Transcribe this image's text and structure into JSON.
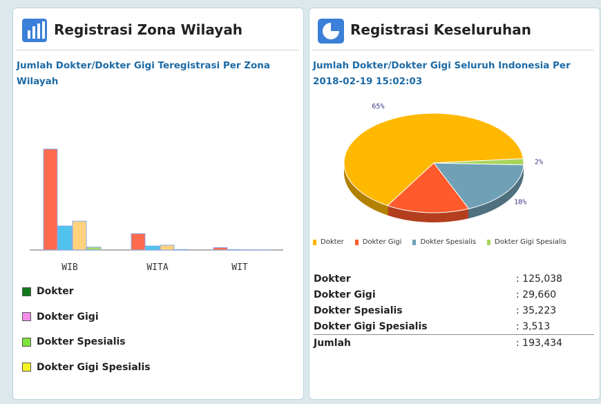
{
  "panels": [
    {
      "title": "Registrasi Zona Wilayah"
    },
    {
      "title": "Registrasi Keseluruhan"
    }
  ],
  "chart_data": [
    {
      "type": "bar",
      "title": "Jumlah Dokter/Dokter Gigi Teregistrasi Per Zona Wilayah",
      "categories": [
        "WIB",
        "WITA",
        "WIT"
      ],
      "series": [
        {
          "name": "Dokter",
          "color": "#ff6b4d",
          "legend_color": "#117a1d",
          "values": [
            105000,
            17000,
            2500
          ]
        },
        {
          "name": "Dokter Gigi",
          "color": "#4fc3ee",
          "legend_color": "#f58de8",
          "values": [
            25000,
            4200,
            400
          ]
        },
        {
          "name": "Dokter Spesialis",
          "color": "#ffd37e",
          "legend_color": "#7ee33a",
          "values": [
            30000,
            5000,
            200
          ]
        },
        {
          "name": "Dokter Gigi Spesialis",
          "color": "#a8dc6b",
          "legend_color": "#f4f423",
          "values": [
            3000,
            500,
            13
          ]
        }
      ],
      "ylim": [
        0,
        115000
      ]
    },
    {
      "type": "pie",
      "title": "Jumlah Dokter/Dokter Gigi Seluruh Indonesia Per 2018-02-19 15:02:03",
      "categories": [
        "Dokter",
        "Dokter Gigi",
        "Dokter Spesialis",
        "Dokter Gigi Spesialis"
      ],
      "values": [
        65,
        15,
        18,
        2
      ],
      "value_labels": [
        "65%",
        null,
        "18%",
        "2%"
      ],
      "colors": [
        "#ffb800",
        "#ff5a2b",
        "#6fa0b6",
        "#a9d45c"
      ]
    }
  ],
  "table": {
    "rows": [
      [
        "Dokter",
        ": 125,038"
      ],
      [
        "Dokter Gigi",
        ": 29,660"
      ],
      [
        "Dokter Spesialis",
        ": 35,223"
      ],
      [
        "Dokter Gigi Spesialis",
        ": 3,513"
      ]
    ],
    "total": [
      "Jumlah",
      ": 193,434"
    ]
  }
}
